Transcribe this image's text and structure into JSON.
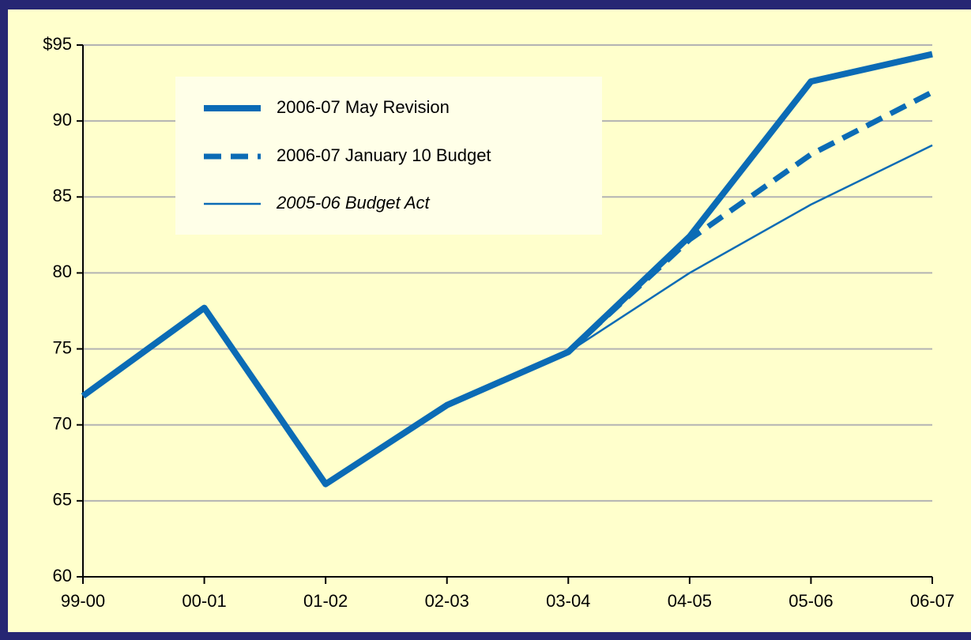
{
  "chart_data": {
    "type": "line",
    "categories": [
      "99-00",
      "00-01",
      "01-02",
      "02-03",
      "03-04",
      "04-05",
      "05-06",
      "06-07"
    ],
    "series": [
      {
        "name": "2006-07 May Revision",
        "color": "#0b6bb5",
        "line_width": 8,
        "dashed": false,
        "italic": false,
        "values": [
          71.9,
          77.7,
          66.1,
          71.3,
          74.8,
          82.4,
          92.6,
          94.4
        ]
      },
      {
        "name": "2006-07 January 10 Budget",
        "color": "#0b6bb5",
        "line_width": 7,
        "dashed": true,
        "italic": false,
        "values": [
          null,
          null,
          null,
          null,
          74.8,
          82.2,
          87.8,
          91.9
        ]
      },
      {
        "name": "2005-06 Budget Act",
        "color": "#0b6bb5",
        "line_width": 2.5,
        "dashed": false,
        "italic": true,
        "values": [
          null,
          null,
          null,
          null,
          74.8,
          80.0,
          84.5,
          88.4
        ]
      }
    ],
    "ylim": [
      60,
      95
    ],
    "yticks": [
      60,
      65,
      70,
      75,
      80,
      85,
      90,
      {
        "value": 95,
        "label": "$95"
      }
    ],
    "grid": true
  }
}
